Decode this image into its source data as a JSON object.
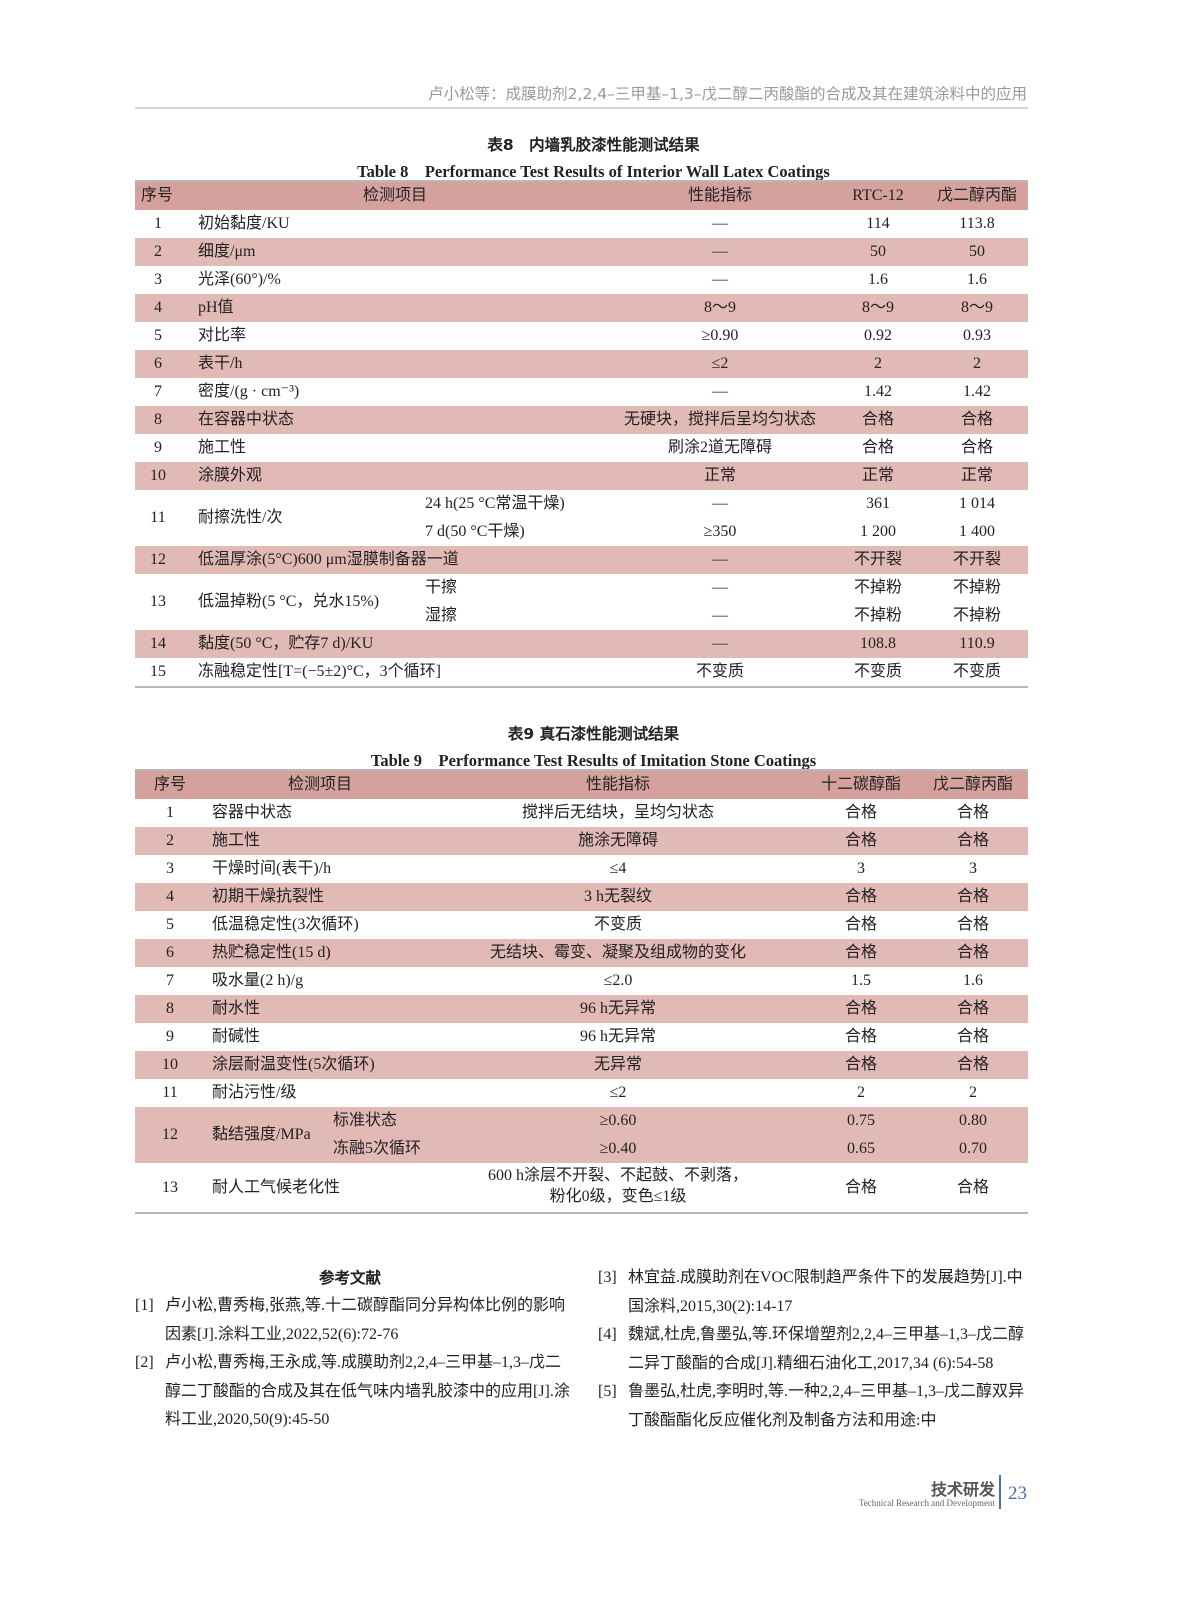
{
  "running_head": "卢小松等：成膜助剂2,2,4–三甲基–1,3–戊二醇二丙酸酯的合成及其在建筑涂料中的应用",
  "table8": {
    "caption_cn": "表8　内墙乳胶漆性能测试结果",
    "caption_en": "Table 8　Performance Test Results of Interior Wall Latex Coatings",
    "headers": [
      "序号",
      "检测项目",
      "性能指标",
      "RTC-12",
      "戊二醇丙酯"
    ],
    "rows": [
      {
        "no": "1",
        "item": "初始黏度/KU",
        "sub": [],
        "spec": [
          "—"
        ],
        "a": [
          "114"
        ],
        "b": [
          "113.8"
        ]
      },
      {
        "no": "2",
        "item": "细度/μm",
        "sub": [],
        "spec": [
          "—"
        ],
        "a": [
          "50"
        ],
        "b": [
          "50"
        ]
      },
      {
        "no": "3",
        "item": "光泽(60°)/%",
        "sub": [],
        "spec": [
          "—"
        ],
        "a": [
          "1.6"
        ],
        "b": [
          "1.6"
        ]
      },
      {
        "no": "4",
        "item": "pH值",
        "sub": [],
        "spec": [
          "8～9"
        ],
        "a": [
          "8～9"
        ],
        "b": [
          "8～9"
        ]
      },
      {
        "no": "5",
        "item": "对比率",
        "sub": [],
        "spec": [
          "≥0.90"
        ],
        "a": [
          "0.92"
        ],
        "b": [
          "0.93"
        ]
      },
      {
        "no": "6",
        "item": "表干/h",
        "sub": [],
        "spec": [
          "≤2"
        ],
        "a": [
          "2"
        ],
        "b": [
          "2"
        ]
      },
      {
        "no": "7",
        "item": "密度/(g · cm⁻³)",
        "sub": [],
        "spec": [
          "—"
        ],
        "a": [
          "1.42"
        ],
        "b": [
          "1.42"
        ]
      },
      {
        "no": "8",
        "item": "在容器中状态",
        "sub": [],
        "spec": [
          "无硬块，搅拌后呈均匀状态"
        ],
        "a": [
          "合格"
        ],
        "b": [
          "合格"
        ]
      },
      {
        "no": "9",
        "item": "施工性",
        "sub": [],
        "spec": [
          "刷涂2道无障碍"
        ],
        "a": [
          "合格"
        ],
        "b": [
          "合格"
        ]
      },
      {
        "no": "10",
        "item": "涂膜外观",
        "sub": [],
        "spec": [
          "正常"
        ],
        "a": [
          "正常"
        ],
        "b": [
          "正常"
        ]
      },
      {
        "no": "11",
        "item": "耐擦洗性/次",
        "sub": [
          "24 h(25 °C常温干燥)",
          "7 d(50 °C干燥)"
        ],
        "spec": [
          "—",
          "≥350"
        ],
        "a": [
          "361",
          "1 200"
        ],
        "b": [
          "1 014",
          "1 400"
        ]
      },
      {
        "no": "12",
        "item": "低温厚涂(5°C)600 μm湿膜制备器一道",
        "sub": [],
        "spec": [
          "—"
        ],
        "a": [
          "不开裂"
        ],
        "b": [
          "不开裂"
        ]
      },
      {
        "no": "13",
        "item": "低温掉粉(5 °C，兑水15%)",
        "sub": [
          "干擦",
          "湿擦"
        ],
        "spec": [
          "—",
          "—"
        ],
        "a": [
          "不掉粉",
          "不掉粉"
        ],
        "b": [
          "不掉粉",
          "不掉粉"
        ]
      },
      {
        "no": "14",
        "item": "黏度(50 °C，贮存7 d)/KU",
        "sub": [],
        "spec": [
          "—"
        ],
        "a": [
          "108.8"
        ],
        "b": [
          "110.9"
        ]
      },
      {
        "no": "15",
        "item": "冻融稳定性[T=(−5±2)°C，3个循环]",
        "sub": [],
        "spec": [
          "不变质"
        ],
        "a": [
          "不变质"
        ],
        "b": [
          "不变质"
        ]
      }
    ]
  },
  "table9": {
    "caption_cn": "表9 真石漆性能测试结果",
    "caption_en": "Table 9　Performance Test Results of Imitation Stone Coatings",
    "headers": [
      "序号",
      "检测项目",
      "性能指标",
      "十二碳醇酯",
      "戊二醇丙酯"
    ],
    "rows": [
      {
        "no": "1",
        "item": "容器中状态",
        "sub": [],
        "spec": [
          "搅拌后无结块，呈均匀状态"
        ],
        "a": [
          "合格"
        ],
        "b": [
          "合格"
        ]
      },
      {
        "no": "2",
        "item": "施工性",
        "sub": [],
        "spec": [
          "施涂无障碍"
        ],
        "a": [
          "合格"
        ],
        "b": [
          "合格"
        ]
      },
      {
        "no": "3",
        "item": "干燥时间(表干)/h",
        "sub": [],
        "spec": [
          "≤4"
        ],
        "a": [
          "3"
        ],
        "b": [
          "3"
        ]
      },
      {
        "no": "4",
        "item": "初期干燥抗裂性",
        "sub": [],
        "spec": [
          "3 h无裂纹"
        ],
        "a": [
          "合格"
        ],
        "b": [
          "合格"
        ]
      },
      {
        "no": "5",
        "item": "低温稳定性(3次循环)",
        "sub": [],
        "spec": [
          "不变质"
        ],
        "a": [
          "合格"
        ],
        "b": [
          "合格"
        ]
      },
      {
        "no": "6",
        "item": "热贮稳定性(15 d)",
        "sub": [],
        "spec": [
          "无结块、霉变、凝聚及组成物的变化"
        ],
        "a": [
          "合格"
        ],
        "b": [
          "合格"
        ]
      },
      {
        "no": "7",
        "item": "吸水量(2 h)/g",
        "sub": [],
        "spec": [
          "≤2.0"
        ],
        "a": [
          "1.5"
        ],
        "b": [
          "1.6"
        ]
      },
      {
        "no": "8",
        "item": "耐水性",
        "sub": [],
        "spec": [
          "96 h无异常"
        ],
        "a": [
          "合格"
        ],
        "b": [
          "合格"
        ]
      },
      {
        "no": "9",
        "item": "耐碱性",
        "sub": [],
        "spec": [
          "96 h无异常"
        ],
        "a": [
          "合格"
        ],
        "b": [
          "合格"
        ]
      },
      {
        "no": "10",
        "item": "涂层耐温变性(5次循环)",
        "sub": [],
        "spec": [
          "无异常"
        ],
        "a": [
          "合格"
        ],
        "b": [
          "合格"
        ]
      },
      {
        "no": "11",
        "item": "耐沾污性/级",
        "sub": [],
        "spec": [
          "≤2"
        ],
        "a": [
          "2"
        ],
        "b": [
          "2"
        ]
      },
      {
        "no": "12",
        "item": "黏结强度/MPa",
        "sub": [
          "标准状态",
          "冻融5次循环"
        ],
        "spec": [
          "≥0.60",
          "≥0.40"
        ],
        "a": [
          "0.75",
          "0.65"
        ],
        "b": [
          "0.80",
          "0.70"
        ]
      },
      {
        "no": "13",
        "item": "耐人工气候老化性",
        "sub": [],
        "spec_block": [
          "600 h涂层不开裂、不起鼓、不剥落，",
          "粉化0级，变色≤1级"
        ],
        "spec": [],
        "a": [
          "合格"
        ],
        "b": [
          "合格"
        ]
      }
    ]
  },
  "references": {
    "title": "参考文献",
    "items": [
      {
        "num": "[1]",
        "text": "卢小松,曹秀梅,张燕,等.十二碳醇酯同分异构体比例的影响因素[J].涂料工业,2022,52(6):72-76"
      },
      {
        "num": "[2]",
        "text": "卢小松,曹秀梅,王永成,等.成膜助剂2,2,4–三甲基–1,3–戊二醇二丁酸酯的合成及其在低气味内墙乳胶漆中的应用[J].涂料工业,2020,50(9):45-50"
      },
      {
        "num": "[3]",
        "text": "林宜益.成膜助剂在VOC限制趋严条件下的发展趋势[J].中国涂料,2015,30(2):14-17"
      },
      {
        "num": "[4]",
        "text": "魏斌,杜虎,鲁墨弘,等.环保增塑剂2,2,4–三甲基–1,3–戊二醇二异丁酸酯的合成[J].精细石油化工,2017,34 (6):54-58"
      },
      {
        "num": "[5]",
        "text": "鲁墨弘,杜虎,李明时,等.一种2,2,4–三甲基–1,3–戊二醇双异丁酸酯酯化反应催化剂及制备方法和用途:中"
      }
    ]
  },
  "footer": {
    "section_cn": "技术研发",
    "section_en": "Technical Research and Development",
    "page_number": "23",
    "accent_color": "#4a6fa5"
  },
  "colors": {
    "header_row": "#d4a19d",
    "shaded_row": "#e1b9b5"
  }
}
